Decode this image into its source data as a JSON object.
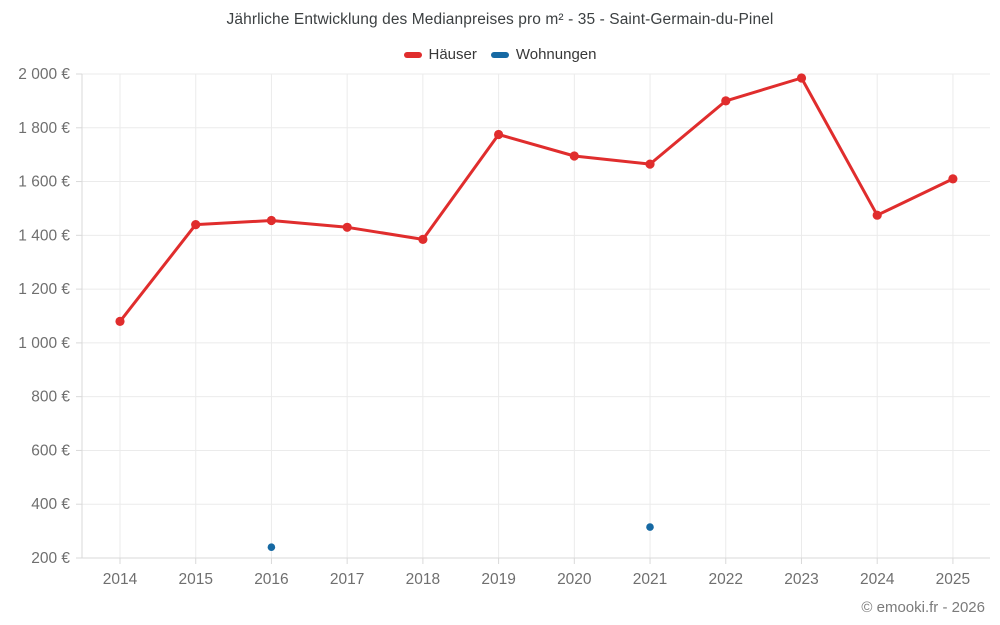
{
  "page": {
    "title": "Jährliche Entwicklung des Medianpreises pro m² - 35 - Saint-Germain-du-Pinel",
    "footer": "© emooki.fr - 2026"
  },
  "legend": {
    "items": [
      {
        "label": "Häuser",
        "color": "#e02d2d"
      },
      {
        "label": "Wohnungen",
        "color": "#1669a3"
      }
    ]
  },
  "chart_data": {
    "type": "line",
    "title": "Jährliche Entwicklung des Medianpreises pro m² - 35 - Saint-Germain-du-Pinel",
    "categories": [
      "2014",
      "2015",
      "2016",
      "2017",
      "2018",
      "2019",
      "2020",
      "2021",
      "2022",
      "2023",
      "2024",
      "2025"
    ],
    "series": [
      {
        "name": "Häuser",
        "color": "#e02d2d",
        "values": [
          1080,
          1440,
          1455,
          1430,
          1385,
          1775,
          1695,
          1665,
          1900,
          1985,
          1475,
          1610
        ]
      },
      {
        "name": "Wohnungen",
        "color": "#1669a3",
        "values": [
          null,
          null,
          240,
          null,
          null,
          null,
          null,
          315,
          null,
          null,
          null,
          null
        ]
      }
    ],
    "xlabel": "",
    "ylabel": "",
    "ylim": [
      200,
      2000
    ],
    "ytick_values": [
      200,
      400,
      600,
      800,
      1000,
      1200,
      1400,
      1600,
      1800,
      2000
    ],
    "ytick_labels": [
      "200 €",
      "400 €",
      "600 €",
      "800 €",
      "1 000 €",
      "1 200 €",
      "1 400 €",
      "1 600 €",
      "1 800 €",
      "2 000 €"
    ],
    "grid": true,
    "legend_position": "top",
    "currency_suffix": "€"
  }
}
